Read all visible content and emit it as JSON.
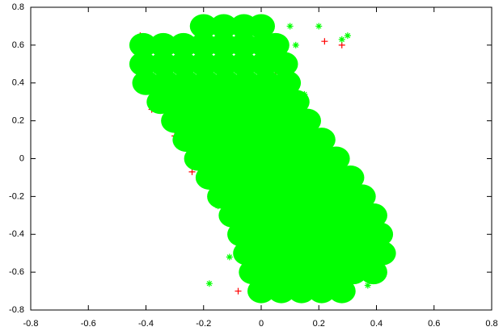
{
  "chart_data": {
    "type": "scatter",
    "xlim": [
      -0.8,
      0.8
    ],
    "xticks": [
      -0.8,
      -0.6,
      -0.4,
      -0.2,
      0,
      0.2,
      0.4,
      0.6,
      0.8
    ],
    "ylim": [
      -0.8,
      0.8
    ],
    "yticks": [
      -0.8,
      -0.6,
      -0.4,
      -0.2,
      0,
      0.2,
      0.4,
      0.6,
      0.8
    ],
    "series": [
      {
        "color": "#ff0000",
        "x": [
          -0.42,
          -0.4,
          -0.38,
          -0.3,
          -0.24,
          -0.2,
          -0.13,
          -0.05,
          -0.04,
          0.05,
          0.08,
          0.13,
          0.2,
          0.27,
          0.33,
          0.41,
          0.42,
          0.38,
          -0.08,
          0.12,
          0.22,
          0.28
        ],
        "y": [
          0.65,
          0.45,
          0.26,
          0.12,
          -0.07,
          -0.1,
          -0.17,
          -0.32,
          -0.44,
          0.45,
          0.36,
          0.12,
          0.07,
          -0.05,
          -0.12,
          -0.33,
          -0.47,
          -0.6,
          -0.7,
          -0.7,
          0.62,
          0.6
        ]
      },
      {
        "color": "#00ff00",
        "x": [
          -0.2,
          -0.13,
          -0.06,
          0.0,
          -0.41,
          -0.34,
          -0.27,
          -0.2,
          -0.13,
          -0.06,
          0.01,
          0.05,
          -0.41,
          -0.34,
          -0.27,
          -0.2,
          -0.13,
          -0.06,
          0.01,
          0.08,
          -0.4,
          -0.33,
          -0.26,
          -0.19,
          -0.12,
          -0.05,
          0.02,
          0.09,
          -0.35,
          -0.28,
          -0.21,
          -0.14,
          -0.07,
          0.0,
          0.07,
          0.12,
          -0.3,
          -0.23,
          -0.16,
          -0.09,
          -0.02,
          0.05,
          0.12,
          0.16,
          -0.26,
          -0.19,
          -0.12,
          -0.05,
          0.02,
          0.09,
          0.16,
          0.21,
          -0.22,
          -0.15,
          -0.08,
          -0.01,
          0.06,
          0.13,
          0.2,
          0.26,
          -0.18,
          -0.11,
          -0.04,
          0.03,
          0.1,
          0.17,
          0.24,
          0.31,
          -0.14,
          -0.07,
          0.0,
          0.07,
          0.14,
          0.21,
          0.28,
          0.35,
          -0.1,
          -0.03,
          0.04,
          0.11,
          0.18,
          0.25,
          0.32,
          0.39,
          -0.07,
          0.0,
          0.07,
          0.14,
          0.21,
          0.28,
          0.35,
          0.41,
          -0.05,
          0.02,
          0.09,
          0.16,
          0.23,
          0.3,
          0.37,
          0.42,
          -0.03,
          0.04,
          0.11,
          0.18,
          0.25,
          0.32,
          0.39,
          0.0,
          0.07,
          0.14,
          0.21,
          0.28
        ],
        "y": [
          0.7,
          0.7,
          0.7,
          0.7,
          0.6,
          0.6,
          0.6,
          0.6,
          0.6,
          0.6,
          0.6,
          0.6,
          0.5,
          0.5,
          0.5,
          0.5,
          0.5,
          0.5,
          0.5,
          0.5,
          0.4,
          0.4,
          0.4,
          0.4,
          0.4,
          0.4,
          0.4,
          0.4,
          0.3,
          0.3,
          0.3,
          0.3,
          0.3,
          0.3,
          0.3,
          0.3,
          0.2,
          0.2,
          0.2,
          0.2,
          0.2,
          0.2,
          0.2,
          0.2,
          0.1,
          0.1,
          0.1,
          0.1,
          0.1,
          0.1,
          0.1,
          0.1,
          0,
          0,
          0,
          0,
          0,
          0,
          0,
          0,
          -0.1,
          -0.1,
          -0.1,
          -0.1,
          -0.1,
          -0.1,
          -0.1,
          -0.1,
          -0.2,
          -0.2,
          -0.2,
          -0.2,
          -0.2,
          -0.2,
          -0.2,
          -0.2,
          -0.3,
          -0.3,
          -0.3,
          -0.3,
          -0.3,
          -0.3,
          -0.3,
          -0.3,
          -0.4,
          -0.4,
          -0.4,
          -0.4,
          -0.4,
          -0.4,
          -0.4,
          -0.4,
          -0.5,
          -0.5,
          -0.5,
          -0.5,
          -0.5,
          -0.5,
          -0.5,
          -0.5,
          -0.6,
          -0.6,
          -0.6,
          -0.6,
          -0.6,
          -0.6,
          -0.6,
          -0.7,
          -0.7,
          -0.7,
          -0.7,
          -0.7
        ]
      },
      {
        "color": "#00ff00",
        "x": [
          0.1,
          0.2,
          0.28,
          0.3,
          0.12,
          0.15,
          -0.42,
          -0.18,
          -0.11,
          -0.15,
          0.37,
          0.08,
          0.03
        ],
        "y": [
          0.7,
          0.7,
          0.63,
          0.65,
          0.6,
          0.34,
          0.36,
          -0.66,
          -0.52,
          -0.25,
          -0.67,
          -0.55,
          -0.63
        ]
      }
    ]
  }
}
